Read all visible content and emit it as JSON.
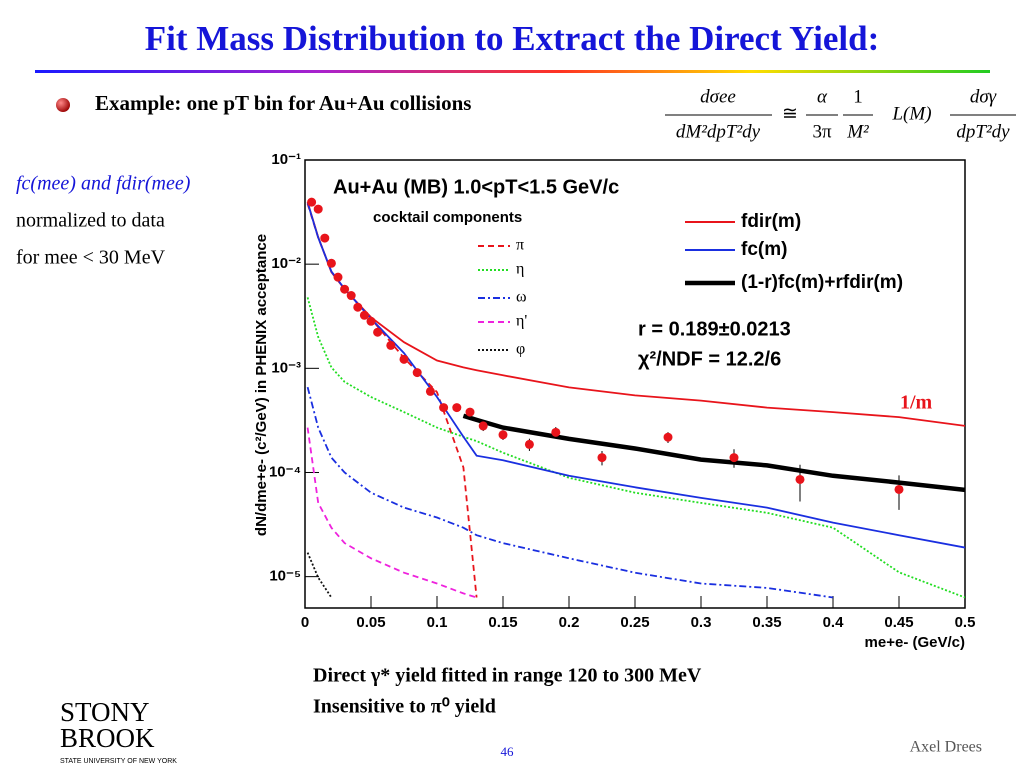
{
  "header": {
    "title": "Fit Mass Distribution to Extract the Direct Yield:"
  },
  "bullet": "Example: one pT bin for Au+Au collisions",
  "formula": {
    "lhs_num": "dσee",
    "lhs_den": "dM²dpT²dy",
    "approx": "≅",
    "a_num": "α",
    "a_den": "3π",
    "b_num": "1",
    "b_den": "M²",
    "mid": "L(M)",
    "c_num": "dσγ",
    "c_den": "dpT²dy"
  },
  "side_note": [
    "fc(mee) and fdir(mee)",
    "normalized to data",
    "for mee < 30 MeV"
  ],
  "notes": [
    "Direct γ* yield fitted in range 120 to 300 MeV",
    "Insensitive to π⁰ yield"
  ],
  "footer": {
    "page": "46",
    "author": "Axel Drees",
    "logo": [
      "STONY",
      "BROOK"
    ],
    "logo_sub": "STATE UNIVERSITY OF NEW YORK"
  },
  "chart_data": {
    "type": "line",
    "title": "Au+Au (MB) 1.0<pT<1.5 GeV/c",
    "legend_title": "cocktail components",
    "x_label": "me+e- (GeV/c)",
    "y_label": "dN/dme+e- (c²/GeV) in PHENIX acceptance",
    "annotations": [
      "r = 0.189±0.0213",
      "χ²/NDF = 12.2/6",
      "1/m"
    ],
    "log_y": true,
    "xlim": [
      0,
      0.5
    ],
    "ylim": [
      5e-06,
      0.1
    ],
    "xticks": [
      0,
      0.05,
      0.1,
      0.15,
      0.2,
      0.25,
      0.3,
      0.35,
      0.4,
      0.45,
      0.5
    ],
    "yticks": [
      {
        "value": 0.1,
        "label": "10⁻¹"
      },
      {
        "value": 0.01,
        "label": "10⁻²"
      },
      {
        "value": 0.001,
        "label": "10⁻³"
      },
      {
        "value": 0.0001,
        "label": "10⁻⁴"
      },
      {
        "value": 1e-05,
        "label": "10⁻⁵"
      }
    ],
    "x": [
      0.002,
      0.01,
      0.02,
      0.03,
      0.05,
      0.075,
      0.1,
      0.12,
      0.13,
      0.15,
      0.2,
      0.25,
      0.3,
      0.35,
      0.4,
      0.45,
      0.5
    ],
    "series": [
      {
        "name": "π",
        "color": "#e8141b",
        "line_style": "dashed",
        "legend": "left",
        "values": [
          0.038,
          0.018,
          0.0085,
          0.0058,
          0.003,
          0.00126,
          0.00059,
          0.000112,
          6.3e-06,
          null,
          null,
          null,
          null,
          null,
          null,
          null,
          null
        ]
      },
      {
        "name": "η",
        "color": "#22dd22",
        "line_style": "dotted",
        "legend": "left",
        "values": [
          0.0048,
          0.002,
          0.00102,
          0.00074,
          0.00053,
          0.00038,
          0.00027,
          0.00022,
          0.0002,
          0.000155,
          8.9e-05,
          6.4e-05,
          5.1e-05,
          4.1e-05,
          2.95e-05,
          1.1e-05,
          6.3e-06
        ]
      },
      {
        "name": "ω",
        "color": "#1a2fe0",
        "line_style": "dashdot",
        "legend": "left",
        "values": [
          0.00066,
          0.00027,
          0.000139,
          0.0001,
          6.4e-05,
          4.6e-05,
          3.7e-05,
          2.95e-05,
          2.5e-05,
          2.1e-05,
          1.5e-05,
          1.09e-05,
          8.6e-06,
          7.8e-06,
          6.3e-06,
          null,
          null
        ]
      },
      {
        "name": "η'",
        "color": "#ee22dd",
        "line_style": "dashed",
        "legend": "left",
        "values": [
          0.00027,
          5.1e-05,
          2.95e-05,
          2.1e-05,
          1.5e-05,
          1.09e-05,
          8.6e-06,
          6.9e-06,
          6.3e-06,
          null,
          null,
          null,
          null,
          null,
          null,
          null,
          null
        ]
      },
      {
        "name": "φ",
        "color": "#111111",
        "line_style": "dotted",
        "legend": "left",
        "values": [
          1.7e-05,
          9.8e-06,
          6.3e-06,
          null,
          null,
          null,
          null,
          null,
          null,
          null,
          null,
          null,
          null,
          null,
          null,
          null,
          null
        ]
      },
      {
        "name": "fdir(m)",
        "color": "#e8141b",
        "line_style": "solid",
        "legend": "right",
        "values": [
          0.0394,
          0.0182,
          0.00838,
          0.00575,
          0.00309,
          0.00178,
          0.00119,
          0.00102,
          0.00096,
          0.000857,
          0.000656,
          0.00055,
          0.00049,
          0.00042,
          0.00038,
          0.00034,
          0.00028
        ]
      },
      {
        "name": "fc(m)",
        "color": "#1a2fe0",
        "line_style": "solid",
        "legend": "right",
        "values": [
          0.039,
          0.018,
          0.0085,
          0.0058,
          0.003,
          0.0014,
          0.00053,
          0.00022,
          0.000145,
          0.000131,
          9.3e-05,
          7.2e-05,
          5.7e-05,
          4.6e-05,
          3.3e-05,
          2.5e-05,
          1.9e-05
        ]
      },
      {
        "name": "(1-r)fc(m)+rfdir(m)",
        "color": "#000000",
        "line_style": "thick",
        "legend": "right",
        "values": [
          null,
          null,
          null,
          null,
          null,
          null,
          null,
          0.00035,
          0.00032,
          0.00027,
          0.00021,
          0.00017,
          0.000133,
          0.000117,
          9.3e-05,
          8e-05,
          6.8e-05
        ]
      }
    ],
    "points": {
      "color": "#e8141b",
      "x": [
        0.005,
        0.01,
        0.015,
        0.02,
        0.025,
        0.03,
        0.035,
        0.04,
        0.045,
        0.05,
        0.055,
        0.065,
        0.075,
        0.085,
        0.095,
        0.105,
        0.115,
        0.125,
        0.135,
        0.15,
        0.17,
        0.19,
        0.225,
        0.275,
        0.325,
        0.375,
        0.45
      ],
      "values": [
        0.0394,
        0.0338,
        0.0178,
        0.0102,
        0.0075,
        0.00575,
        0.005,
        0.00386,
        0.00323,
        0.00283,
        0.00222,
        0.00166,
        0.00122,
        0.00091,
        0.0006,
        0.00042,
        0.00042,
        0.00038,
        0.00028,
        0.00023,
        0.000186,
        0.000243,
        0.000139,
        0.000218,
        0.000139,
        8.57e-05,
        6.87e-05
      ],
      "errors": [
        0.002,
        0.0017,
        0.0009,
        0.0005,
        0.0004,
        0.0003,
        0.00025,
        0.0002,
        0.00017,
        0.00015,
        0.00012,
        9e-05,
        7e-05,
        5e-05,
        4e-05,
        3e-05,
        3e-05,
        3e-05,
        3e-05,
        2.5e-05,
        2.5e-05,
        3e-05,
        2.2e-05,
        2.6e-05,
        2.8e-05,
        3.3e-05,
        2.5e-05
      ]
    }
  }
}
